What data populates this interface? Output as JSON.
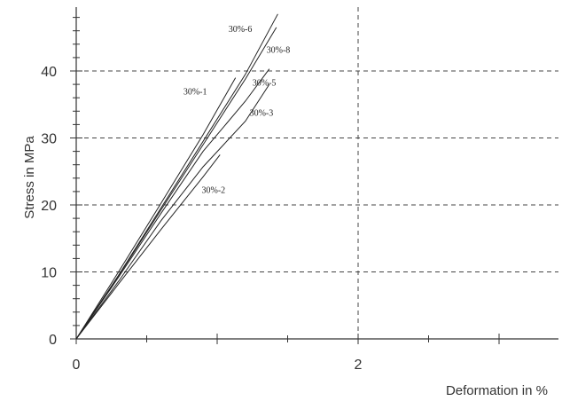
{
  "chart_data": {
    "type": "line",
    "title": "",
    "xlabel": "Deformation in %",
    "ylabel": "Stress in MPa",
    "xlim": [
      0,
      3.4
    ],
    "ylim": [
      0,
      48
    ],
    "x_ticks": [
      0,
      2
    ],
    "y_ticks": [
      0,
      10,
      20,
      30,
      40
    ],
    "grid": true,
    "grid_style": "dashed",
    "legend": "none (series labeled inline at line ends)",
    "series": [
      {
        "name": "30%-6",
        "x": [
          0,
          0.3,
          0.6,
          0.9,
          1.2,
          1.43
        ],
        "y": [
          0,
          9.5,
          19.5,
          29.5,
          39.5,
          48.5
        ]
      },
      {
        "name": "30%-8",
        "x": [
          0,
          0.3,
          0.6,
          0.9,
          1.2,
          1.42
        ],
        "y": [
          0,
          9.4,
          19.2,
          29,
          38.8,
          46.5
        ]
      },
      {
        "name": "30%-1",
        "x": [
          0,
          0.3,
          0.6,
          0.9,
          1.13
        ],
        "y": [
          0,
          10,
          20.2,
          30.5,
          39
        ]
      },
      {
        "name": "30%-5",
        "x": [
          0,
          0.3,
          0.6,
          0.9,
          1.2,
          1.37
        ],
        "y": [
          0,
          9.2,
          18.7,
          28,
          35.5,
          40.3
        ]
      },
      {
        "name": "30%-3",
        "x": [
          0,
          0.3,
          0.6,
          0.9,
          1.2,
          1.37
        ],
        "y": [
          0,
          8.6,
          17.6,
          25.7,
          32.5,
          38
        ]
      },
      {
        "name": "30%-2",
        "x": [
          0,
          0.3,
          0.6,
          0.9,
          1.02
        ],
        "y": [
          0,
          8.2,
          16.3,
          24.2,
          27.5
        ]
      }
    ]
  }
}
